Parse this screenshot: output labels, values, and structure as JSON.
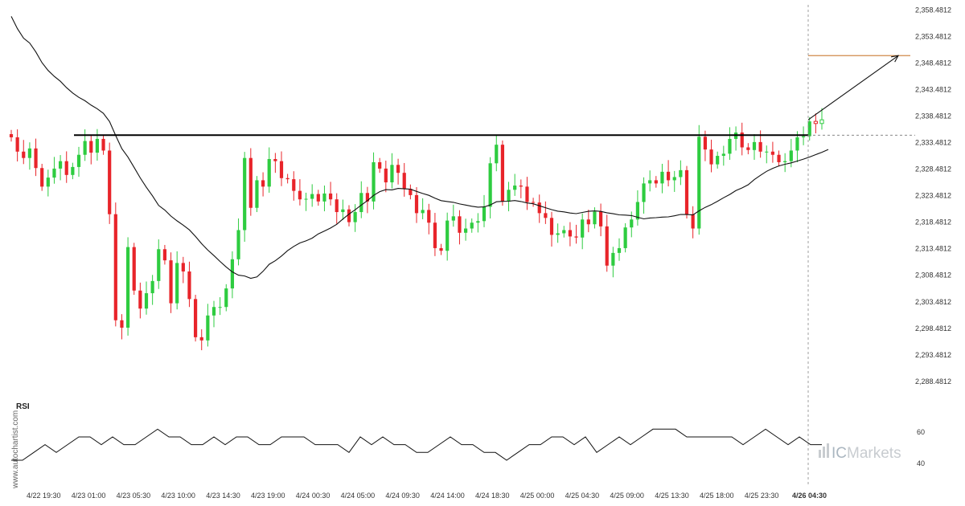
{
  "watermark": {
    "side_text": "www.autochartist.com",
    "brand": "ICMarkets",
    "brand_prefix": "IC",
    "brand_rest": "Markets"
  },
  "chart_data": [
    {
      "type": "candlestick",
      "title": "",
      "xlabel": "",
      "ylabel": "",
      "ylim": [
        2286.4812,
        2359.4812
      ],
      "y_ticks": [
        "2,358.4812",
        "2,353.4812",
        "2,348.4812",
        "2,343.4812",
        "2,338.4812",
        "2,333.4812",
        "2,328.4812",
        "2,323.4812",
        "2,318.4812",
        "2,313.4812",
        "2,308.4812",
        "2,303.4812",
        "2,298.4812",
        "2,293.4812",
        "2,288.4812"
      ],
      "y_tick_values": [
        2358.4812,
        2353.4812,
        2348.4812,
        2343.4812,
        2338.4812,
        2333.4812,
        2328.4812,
        2323.4812,
        2318.4812,
        2313.4812,
        2308.4812,
        2303.4812,
        2298.4812,
        2293.4812,
        2288.4812
      ],
      "x_ticks": [
        "4/22 19:30",
        "4/23 01:00",
        "4/23 05:30",
        "4/23 10:00",
        "4/23 14:30",
        "4/23 19:00",
        "4/24 00:30",
        "4/24 05:00",
        "4/24 09:30",
        "4/24 14:00",
        "4/24 18:30",
        "4/25 00:00",
        "4/25 04:30",
        "4/25 09:00",
        "4/25 13:30",
        "4/25 18:00",
        "4/25 23:30",
        "4/26 04:30"
      ],
      "resistance_level": 2334.9,
      "current_price": 2334.9,
      "target_level": 2349.9,
      "grid": false,
      "colors": {
        "up": "#2ecc40",
        "down": "#e8242a",
        "support": "#000000",
        "target": "#d08a4a",
        "ma": "#111111"
      },
      "close_series": [
        2334.5,
        2331.8,
        2330.6,
        2332.4,
        2328.7,
        2325.2,
        2326.9,
        2328.6,
        2330.0,
        2327.4,
        2328.9,
        2331.2,
        2333.8,
        2331.6,
        2334.2,
        2332.0,
        2320.0,
        2300.0,
        2298.6,
        2313.8,
        2305.6,
        2302.2,
        2305.1,
        2307.4,
        2313.4,
        2311.3,
        2303.2,
        2310.8,
        2309.2,
        2304.0,
        2296.8,
        2296.2,
        2300.9,
        2302.5,
        2302.5,
        2306.0,
        2311.5,
        2317.0,
        2330.6,
        2321.2,
        2326.4,
        2325.2,
        2330.4,
        2330.0,
        2326.8,
        2326.6,
        2324.4,
        2322.8,
        2322.9,
        2323.8,
        2322.4,
        2323.9,
        2322.8,
        2320.4,
        2320.9,
        2318.5,
        2320.4,
        2324.0,
        2322.4,
        2329.8,
        2328.6,
        2326.0,
        2329.3,
        2327.8,
        2324.8,
        2323.6,
        2320.2,
        2320.8,
        2318.4,
        2313.6,
        2313.1,
        2318.8,
        2319.6,
        2316.5,
        2317.3,
        2318.4,
        2318.7,
        2321.4,
        2329.6,
        2333.1,
        2322.4,
        2324.6,
        2325.4,
        2325.2,
        2322.3,
        2322.2,
        2320.2,
        2319.3,
        2316.1,
        2316.4,
        2317.0,
        2315.8,
        2315.6,
        2319.0,
        2318.1,
        2320.5,
        2317.7,
        2310.3,
        2312.7,
        2313.6,
        2317.5,
        2319.0,
        2322.3,
        2325.8,
        2326.4,
        2325.8,
        2328.0,
        2326.4,
        2327.0,
        2328.3,
        2320.0,
        2317.3,
        2334.6,
        2332.2,
        2329.4,
        2331.0,
        2331.4,
        2334.2,
        2335.4,
        2332.6,
        2332.1,
        2333.6,
        2331.8,
        2331.8,
        2331.2,
        2329.8,
        2330.0,
        2332.0,
        2334.5,
        2334.7,
        2337.5,
        2337.1,
        2337.8
      ]
    },
    {
      "type": "line",
      "title": "RSI",
      "y_ticks": [
        "60",
        "40"
      ],
      "y_tick_values": [
        60,
        40
      ],
      "ylim": [
        28,
        72
      ],
      "values": [
        42,
        42,
        47,
        52,
        47,
        52,
        57,
        57,
        52,
        57,
        52,
        52,
        57,
        62,
        57,
        57,
        52,
        52,
        57,
        52,
        57,
        57,
        52,
        52,
        57,
        57,
        57,
        52,
        52,
        52,
        47,
        57,
        52,
        57,
        52,
        52,
        47,
        47,
        52,
        57,
        52,
        52,
        47,
        47,
        42,
        47,
        52,
        52,
        57,
        57,
        52,
        57,
        47,
        52,
        57,
        52,
        57,
        62,
        62,
        62,
        57,
        57,
        57,
        57,
        57,
        52,
        57,
        62,
        57,
        52,
        57,
        52,
        52
      ]
    }
  ]
}
